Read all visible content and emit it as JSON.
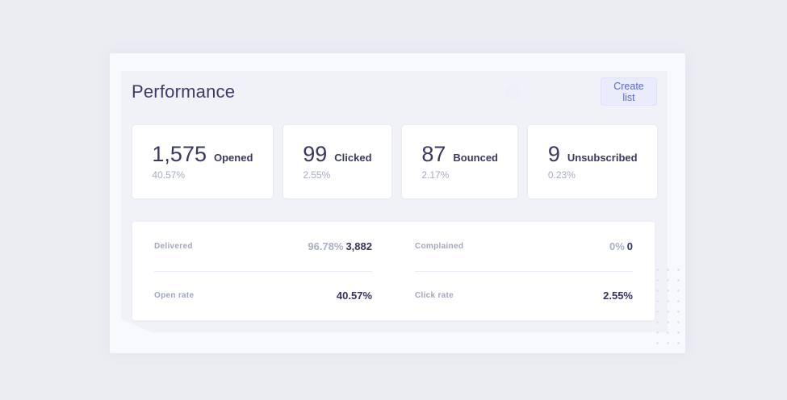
{
  "header": {
    "title": "Performance",
    "create_button": "Create list"
  },
  "stat_cards": [
    {
      "value": "1,575",
      "label": "Opened",
      "percent": "40.57%"
    },
    {
      "value": "99",
      "label": "Clicked",
      "percent": "2.55%"
    },
    {
      "value": "87",
      "label": "Bounced",
      "percent": "2.17%"
    },
    {
      "value": "9",
      "label": "Unsubscribed",
      "percent": "0.23%"
    }
  ],
  "details": {
    "left": [
      {
        "label": "Delivered",
        "percent": "96.78%",
        "value": "3,882"
      },
      {
        "label": "Open rate",
        "percent": "",
        "value": "40.57%"
      }
    ],
    "right": [
      {
        "label": "Complained",
        "percent": "0%",
        "value": "0"
      },
      {
        "label": "Click rate",
        "percent": "",
        "value": "2.55%"
      }
    ]
  },
  "colors": {
    "page_background": "#ecedf3",
    "panel_background": "#f8f9fc",
    "inner_background": "#f1f2f8",
    "card_background": "#ffffff",
    "navy_text": "#393862",
    "gray_text": "#a7acc2",
    "accent": "#5b67cc",
    "button_background": "#eaecfb"
  }
}
